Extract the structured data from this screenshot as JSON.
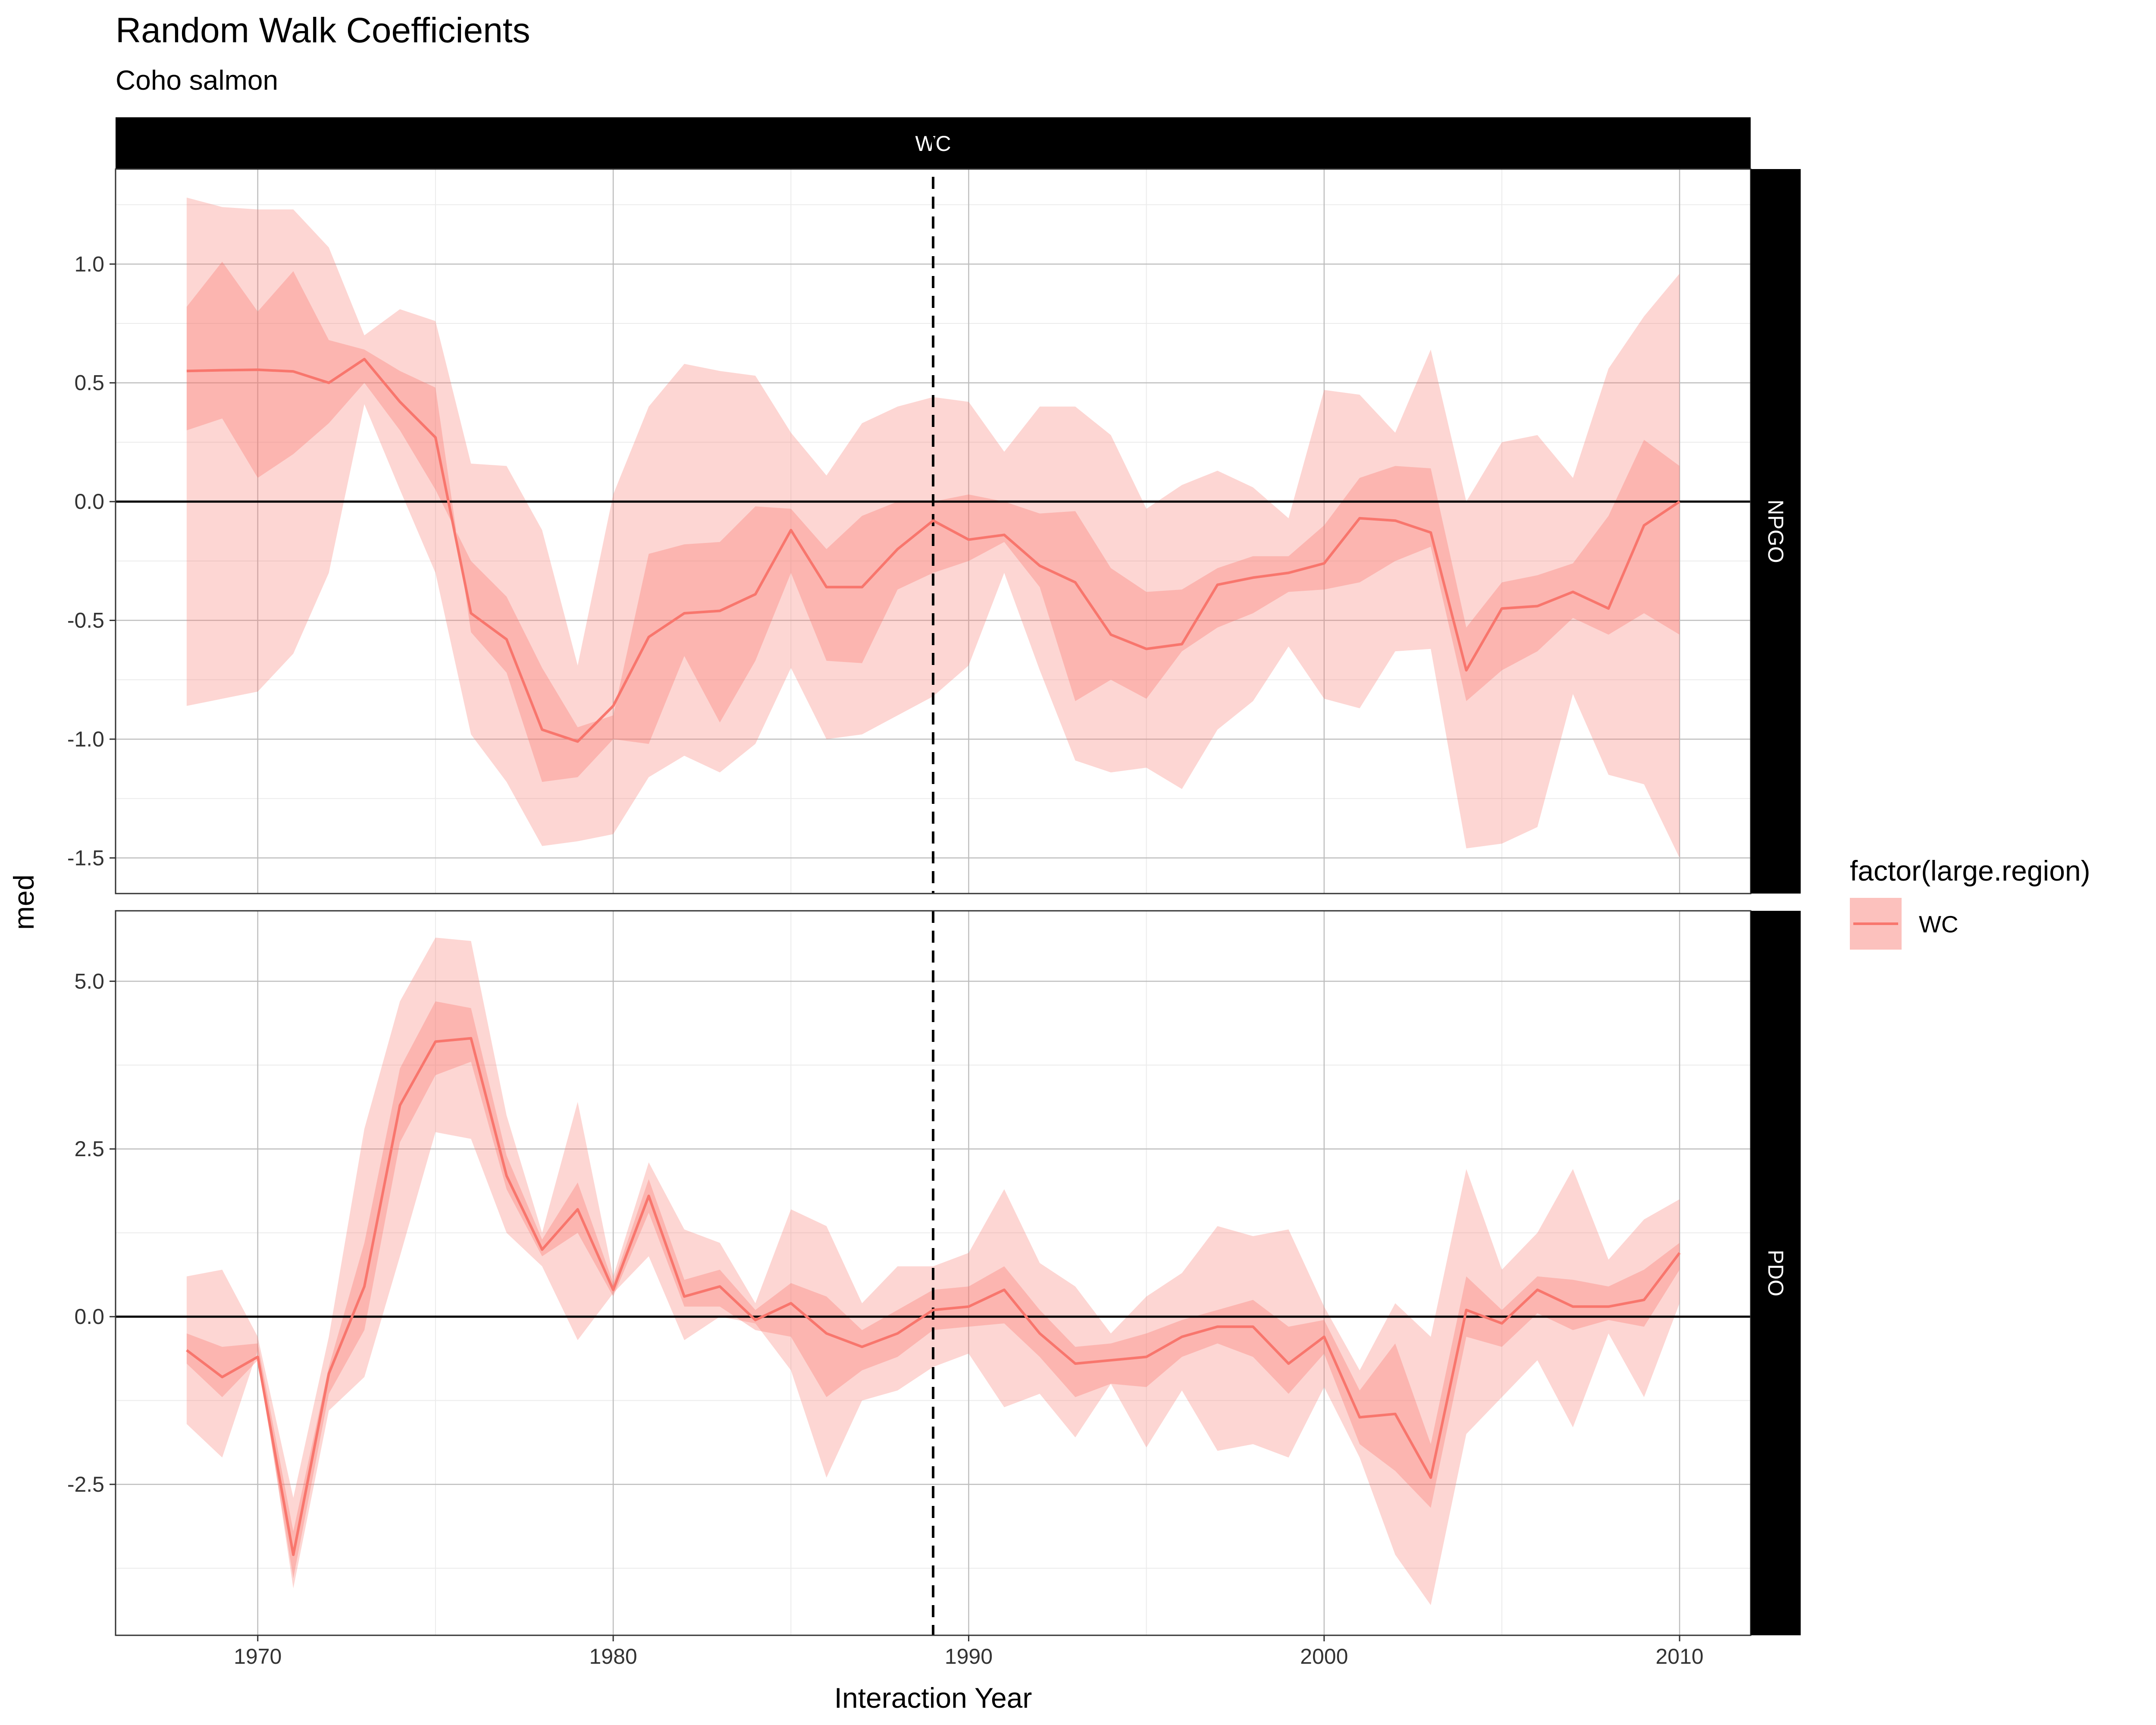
{
  "chart_data": {
    "type": "line",
    "title": "Random Walk Coefficients",
    "subtitle": "Coho salmon",
    "xlabel": "Interaction Year",
    "ylabel": "med",
    "xlim": [
      1966,
      2012
    ],
    "x_ticks": [
      1970,
      1980,
      1990,
      2000,
      2010
    ],
    "vline_x": 1989,
    "hline_y": 0,
    "grid": true,
    "legend": {
      "title": "factor(large.region)",
      "entries": [
        "WC"
      ],
      "placement": "right"
    },
    "colors": {
      "line": "#F8766D",
      "ribbon": "#F8766D",
      "strip_bg": "#000000",
      "strip_text": "#ffffff"
    },
    "column_strip": "WC",
    "x": [
      1968,
      1969,
      1970,
      1971,
      1972,
      1973,
      1974,
      1975,
      1976,
      1977,
      1978,
      1979,
      1980,
      1981,
      1982,
      1983,
      1984,
      1985,
      1986,
      1987,
      1988,
      1989,
      1990,
      1991,
      1992,
      1993,
      1994,
      1995,
      1996,
      1997,
      1998,
      1999,
      2000,
      2001,
      2002,
      2003,
      2004,
      2005,
      2006,
      2007,
      2008,
      2009,
      2010
    ],
    "panels": [
      {
        "label": "NPGO",
        "ylim": [
          -1.65,
          1.4
        ],
        "y_ticks": [
          1.0,
          0.5,
          0.0,
          -0.5,
          -1.0,
          -1.5
        ],
        "y_tick_labels": [
          "1.0",
          "0.5",
          "0.0",
          "-0.5",
          "-1.0",
          "-1.5"
        ],
        "med": [
          0.55,
          0.553,
          0.555,
          0.548,
          0.5,
          0.6,
          0.42,
          0.27,
          -0.47,
          -0.58,
          -0.96,
          -1.01,
          -0.86,
          -0.57,
          -0.47,
          -0.46,
          -0.39,
          -0.12,
          -0.36,
          -0.36,
          -0.2,
          -0.08,
          -0.16,
          -0.14,
          -0.27,
          -0.34,
          -0.56,
          -0.62,
          -0.6,
          -0.35,
          -0.32,
          -0.3,
          -0.26,
          -0.07,
          -0.08,
          -0.13,
          -0.71,
          -0.45,
          -0.44,
          -0.38,
          -0.45,
          -0.1,
          0.0
        ],
        "inner_lo": [
          0.3,
          0.35,
          0.1,
          0.2,
          0.33,
          0.5,
          0.3,
          0.05,
          -0.25,
          -0.4,
          -0.7,
          -0.95,
          -0.9,
          -0.22,
          -0.18,
          -0.17,
          -0.02,
          -0.03,
          -0.2,
          -0.06,
          0.0,
          0.0,
          0.03,
          0.0,
          -0.05,
          -0.04,
          -0.28,
          -0.38,
          -0.37,
          -0.28,
          -0.23,
          -0.23,
          -0.1,
          0.1,
          0.15,
          0.14,
          -0.53,
          -0.34,
          -0.31,
          -0.26,
          -0.06,
          0.26,
          0.15
        ],
        "inner_hi": [
          0.82,
          1.01,
          0.8,
          0.97,
          0.68,
          0.64,
          0.55,
          0.48,
          -0.55,
          -0.72,
          -1.18,
          -1.16,
          -1.0,
          -1.02,
          -0.65,
          -0.93,
          -0.67,
          -0.3,
          -0.67,
          -0.68,
          -0.37,
          -0.3,
          -0.25,
          -0.17,
          -0.36,
          -0.84,
          -0.75,
          -0.83,
          -0.63,
          -0.53,
          -0.47,
          -0.38,
          -0.37,
          -0.34,
          -0.25,
          -0.19,
          -0.84,
          -0.71,
          -0.63,
          -0.49,
          -0.56,
          -0.47,
          -0.56
        ],
        "outer_lo": [
          1.28,
          1.24,
          1.23,
          1.23,
          1.07,
          0.7,
          0.81,
          0.76,
          0.16,
          0.15,
          -0.12,
          -0.69,
          0.03,
          0.4,
          0.58,
          0.55,
          0.53,
          0.29,
          0.11,
          0.33,
          0.4,
          0.44,
          0.42,
          0.21,
          0.4,
          0.4,
          0.28,
          -0.03,
          0.07,
          0.13,
          0.06,
          -0.07,
          0.47,
          0.45,
          0.29,
          0.64,
          0.0,
          0.25,
          0.28,
          0.1,
          0.56,
          0.78,
          0.96
        ],
        "outer_hi": [
          -0.86,
          -0.83,
          -0.8,
          -0.64,
          -0.3,
          0.41,
          0.05,
          -0.3,
          -0.98,
          -1.18,
          -1.45,
          -1.43,
          -1.4,
          -1.16,
          -1.07,
          -1.14,
          -1.02,
          -0.7,
          -1.0,
          -0.98,
          -0.9,
          -0.82,
          -0.69,
          -0.3,
          -0.71,
          -1.09,
          -1.14,
          -1.12,
          -1.21,
          -0.96,
          -0.84,
          -0.61,
          -0.83,
          -0.87,
          -0.63,
          -0.62,
          -1.46,
          -1.44,
          -1.37,
          -0.81,
          -1.15,
          -1.19,
          -1.5
        ]
      },
      {
        "label": "PDO",
        "ylim": [
          -4.75,
          6.05
        ],
        "y_ticks": [
          5.0,
          2.5,
          0.0,
          -2.5
        ],
        "y_tick_labels": [
          "5.0",
          "2.5",
          "0.0",
          "-2.5"
        ],
        "med": [
          -0.5,
          -0.9,
          -0.6,
          -3.55,
          -0.85,
          0.45,
          3.15,
          4.1,
          4.15,
          2.1,
          1.0,
          1.6,
          0.4,
          1.8,
          0.3,
          0.45,
          -0.05,
          0.2,
          -0.25,
          -0.45,
          -0.25,
          0.1,
          0.15,
          0.4,
          -0.25,
          -0.7,
          -0.65,
          -0.6,
          -0.3,
          -0.15,
          -0.15,
          -0.7,
          -0.3,
          -1.5,
          -1.45,
          -2.4,
          0.1,
          -0.1,
          0.4,
          0.15,
          0.15,
          0.25,
          0.95
        ],
        "inner_lo": [
          -0.25,
          -0.45,
          -0.4,
          -3.2,
          -0.75,
          1.1,
          3.7,
          4.7,
          4.6,
          2.4,
          1.15,
          2.0,
          0.5,
          2.05,
          0.55,
          0.7,
          0.1,
          0.5,
          0.3,
          -0.2,
          0.1,
          0.4,
          0.45,
          0.75,
          0.1,
          -0.45,
          -0.4,
          -0.25,
          -0.05,
          0.1,
          0.25,
          -0.15,
          -0.05,
          -1.1,
          -0.4,
          -1.9,
          0.6,
          0.1,
          0.6,
          0.55,
          0.45,
          0.7,
          1.1
        ],
        "inner_hi": [
          -0.7,
          -1.2,
          -0.65,
          -3.9,
          -1.15,
          -0.2,
          2.6,
          3.6,
          3.8,
          1.9,
          0.9,
          1.25,
          0.3,
          1.55,
          0.15,
          0.15,
          -0.2,
          -0.3,
          -1.2,
          -0.8,
          -0.6,
          -0.2,
          -0.15,
          -0.1,
          -0.6,
          -1.2,
          -1.0,
          -1.05,
          -0.6,
          -0.4,
          -0.6,
          -1.15,
          -0.55,
          -1.9,
          -2.3,
          -2.85,
          -0.3,
          -0.45,
          0.05,
          -0.2,
          -0.05,
          -0.15,
          0.7
        ],
        "outer_lo": [
          0.6,
          0.7,
          -0.3,
          -2.7,
          -0.3,
          2.8,
          4.7,
          5.65,
          5.6,
          3.0,
          1.25,
          3.2,
          0.6,
          2.3,
          1.3,
          1.1,
          0.2,
          1.6,
          1.35,
          0.2,
          0.75,
          0.75,
          0.95,
          1.9,
          0.8,
          0.45,
          -0.25,
          0.3,
          0.65,
          1.35,
          1.2,
          1.3,
          0.15,
          -0.8,
          0.2,
          -0.3,
          2.2,
          0.7,
          1.25,
          2.2,
          0.85,
          1.45,
          1.75
        ],
        "outer_hi": [
          -1.6,
          -2.1,
          -0.5,
          -4.05,
          -1.4,
          -0.9,
          0.9,
          2.75,
          2.65,
          1.25,
          0.75,
          -0.35,
          0.35,
          0.9,
          -0.35,
          0.0,
          -0.1,
          -0.8,
          -2.4,
          -1.25,
          -1.1,
          -0.75,
          -0.55,
          -1.35,
          -1.15,
          -1.8,
          -1.0,
          -1.95,
          -1.1,
          -2.0,
          -1.9,
          -2.1,
          -1.05,
          -2.1,
          -3.55,
          -4.3,
          -1.75,
          -1.2,
          -0.65,
          -1.65,
          -0.25,
          -1.2,
          0.2
        ]
      }
    ]
  }
}
